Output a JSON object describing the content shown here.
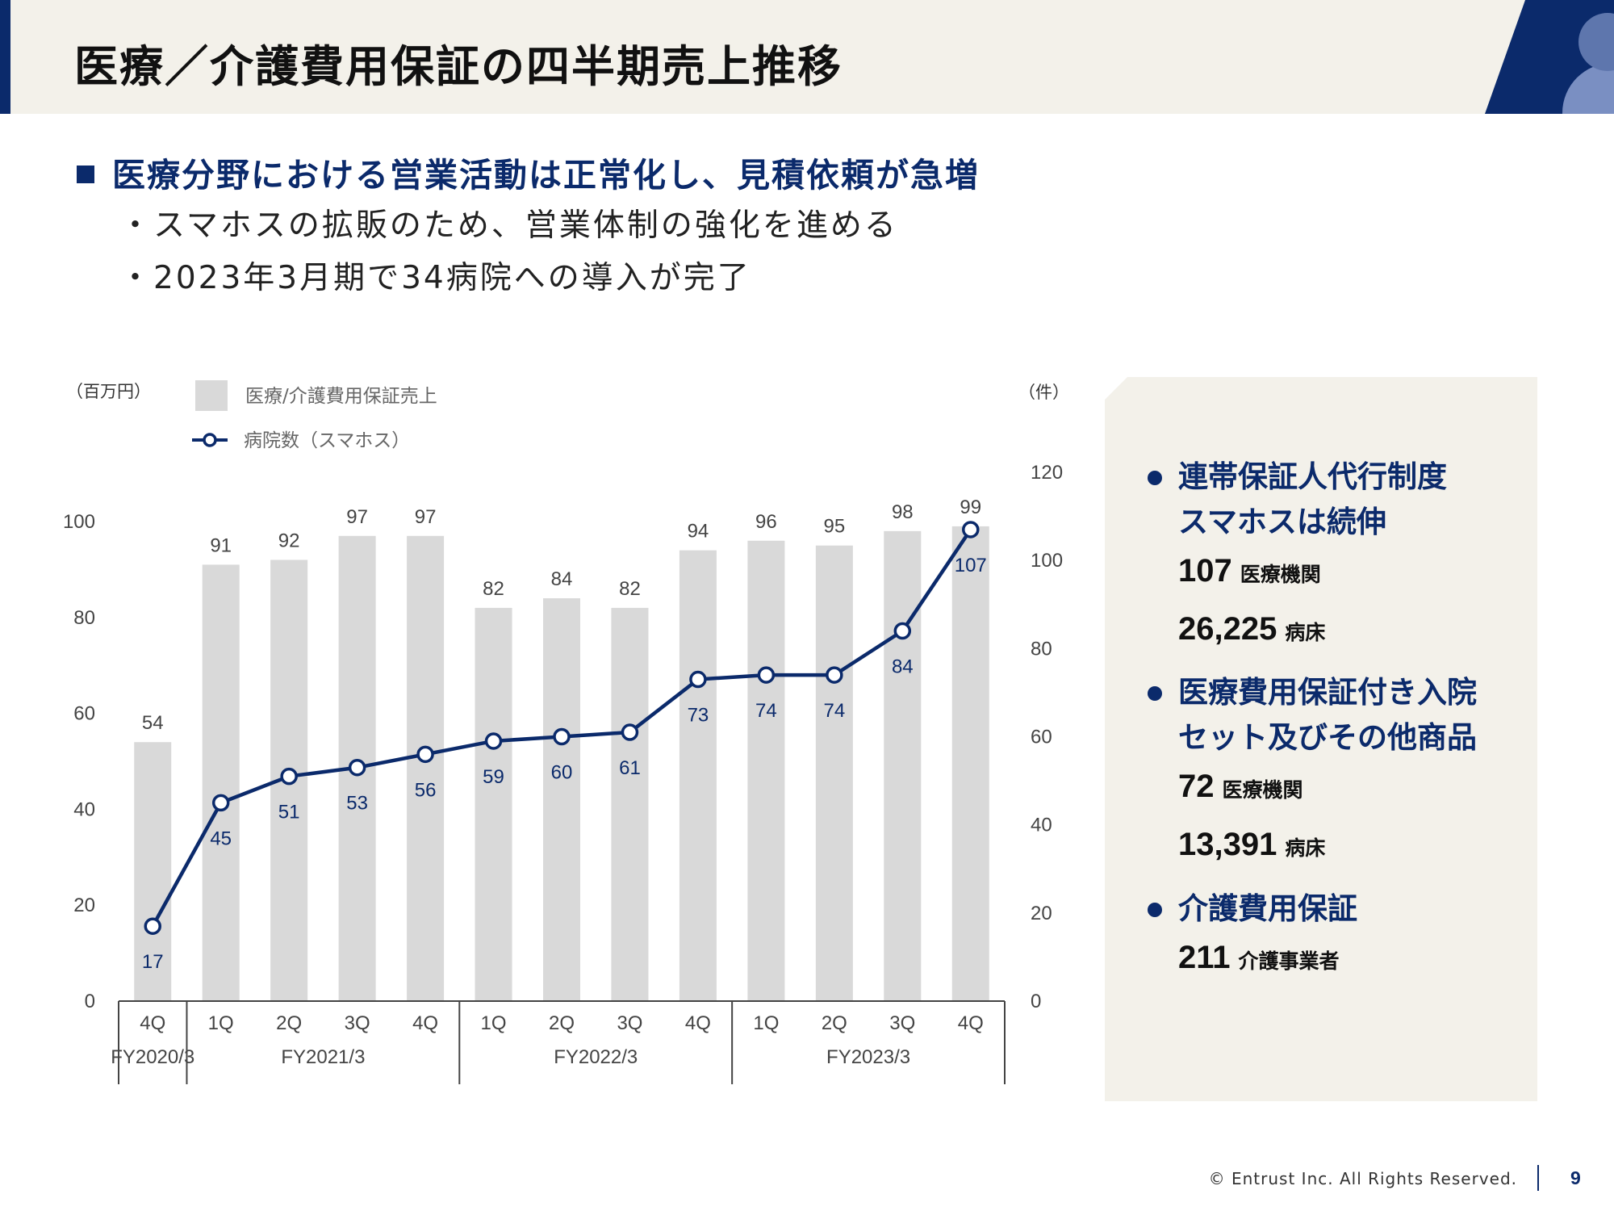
{
  "header": {
    "title": "医療／介護費用保証の四半期売上推移"
  },
  "headline": "医療分野における営業活動は正常化し、見積依頼が急増",
  "bullets": [
    "・スマホスの拡販のため、営業体制の強化を進める",
    "・2023年3月期で34病院への導入が完了"
  ],
  "chart_data": {
    "type": "bar",
    "left_axis_unit": "（百万円）",
    "right_axis_unit": "（件）",
    "categories": [
      "4Q",
      "1Q",
      "2Q",
      "3Q",
      "4Q",
      "1Q",
      "2Q",
      "3Q",
      "4Q",
      "1Q",
      "2Q",
      "3Q",
      "4Q"
    ],
    "fiscal_years": [
      {
        "label": "FY2020/3",
        "span": 1
      },
      {
        "label": "FY2021/3",
        "span": 4
      },
      {
        "label": "FY2022/3",
        "span": 4
      },
      {
        "label": "FY2023/3",
        "span": 4
      }
    ],
    "series": [
      {
        "name": "医療/介護費用保証売上",
        "type": "bar",
        "axis": "left",
        "color": "#d9d9d9",
        "values": [
          54,
          91,
          92,
          97,
          97,
          82,
          84,
          82,
          94,
          96,
          95,
          98,
          99
        ]
      },
      {
        "name": "病院数（スマホス）",
        "type": "line",
        "axis": "right",
        "color": "#0b2a6b",
        "values": [
          17,
          45,
          51,
          53,
          56,
          59,
          60,
          61,
          73,
          74,
          74,
          84,
          107
        ]
      }
    ],
    "left_ylim": [
      0,
      100
    ],
    "left_ticks": [
      0,
      20,
      40,
      60,
      80,
      100
    ],
    "right_ylim": [
      0,
      120
    ],
    "right_ticks": [
      0,
      20,
      40,
      60,
      80,
      100,
      120
    ],
    "legend_position": "top-left"
  },
  "panel": {
    "groups": [
      {
        "title_lines": [
          "連帯保証人代行制度",
          "スマホスは続伸"
        ],
        "stats": [
          {
            "value": "107",
            "unit": "医療機関"
          },
          {
            "value": "26,225",
            "unit": "病床"
          }
        ]
      },
      {
        "title_lines": [
          "医療費用保証付き入院",
          "セット及びその他商品"
        ],
        "stats": [
          {
            "value": "72",
            "unit": "医療機関"
          },
          {
            "value": "13,391",
            "unit": "病床"
          }
        ]
      },
      {
        "title_lines": [
          "介護費用保証"
        ],
        "stats": [
          {
            "value": "211",
            "unit": "介護事業者"
          }
        ]
      }
    ]
  },
  "footer": {
    "copyright": "© Entrust Inc. All Rights Reserved.",
    "page": "9"
  },
  "colors": {
    "brand": "#0b2a6b",
    "bar": "#d9d9d9",
    "header_bg": "#f3f1ea"
  }
}
